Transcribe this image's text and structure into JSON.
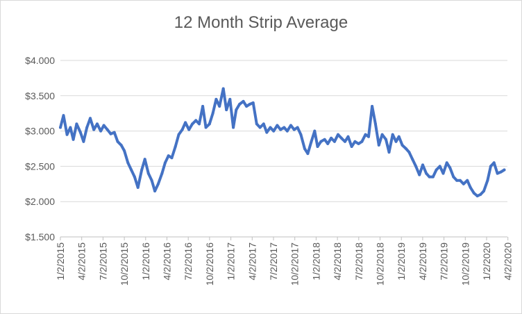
{
  "chart_data": {
    "type": "line",
    "title": "12 Month Strip Average",
    "xlabel": "",
    "ylabel": "",
    "ylim": [
      1.5,
      4.0
    ],
    "y_ticks": [
      "$1.500",
      "$2.000",
      "$2.500",
      "$3.000",
      "$3.500",
      "$4.000"
    ],
    "x_ticks": [
      "1/2/2015",
      "4/2/2015",
      "7/2/2015",
      "10/2/2015",
      "1/2/2016",
      "4/2/2016",
      "7/2/2016",
      "10/2/2016",
      "1/2/2017",
      "4/2/2017",
      "7/2/2017",
      "10/2/2017",
      "1/2/2018",
      "4/2/2018",
      "7/2/2018",
      "10/2/2018",
      "1/2/2019",
      "4/2/2019",
      "7/2/2019",
      "10/2/2019",
      "1/2/2020",
      "4/2/2020"
    ],
    "grid": true,
    "line_color": "#4472C4",
    "series": [
      {
        "x": [
          "2015-01-02",
          "2015-01-16",
          "2015-02-01",
          "2015-02-16",
          "2015-03-01",
          "2015-03-16",
          "2015-04-02",
          "2015-04-16",
          "2015-05-01",
          "2015-05-16",
          "2015-06-01",
          "2015-06-16",
          "2015-07-02",
          "2015-07-16",
          "2015-08-01",
          "2015-08-16",
          "2015-09-01",
          "2015-09-16",
          "2015-10-02",
          "2015-10-16",
          "2015-11-01",
          "2015-11-16",
          "2015-12-01",
          "2015-12-16",
          "2016-01-02",
          "2016-01-16",
          "2016-02-01",
          "2016-02-16",
          "2016-03-01",
          "2016-03-16",
          "2016-04-02",
          "2016-04-16",
          "2016-05-01",
          "2016-05-16",
          "2016-06-01",
          "2016-06-16",
          "2016-07-02",
          "2016-07-16",
          "2016-08-01",
          "2016-08-16",
          "2016-09-01",
          "2016-09-16",
          "2016-10-02",
          "2016-10-16",
          "2016-11-01",
          "2016-11-16",
          "2016-12-01",
          "2016-12-16",
          "2017-01-02",
          "2017-01-16",
          "2017-02-01",
          "2017-02-16",
          "2017-03-01",
          "2017-03-16",
          "2017-04-02",
          "2017-04-16",
          "2017-05-01",
          "2017-05-16",
          "2017-06-01",
          "2017-06-16",
          "2017-07-02",
          "2017-07-16",
          "2017-08-01",
          "2017-08-16",
          "2017-09-01",
          "2017-09-16",
          "2017-10-02",
          "2017-10-16",
          "2017-11-01",
          "2017-11-16",
          "2017-12-01",
          "2017-12-16",
          "2018-01-02",
          "2018-01-16",
          "2018-02-01",
          "2018-02-16",
          "2018-03-01",
          "2018-03-16",
          "2018-04-02",
          "2018-04-16",
          "2018-05-01",
          "2018-05-16",
          "2018-06-01",
          "2018-06-16",
          "2018-07-02",
          "2018-07-16",
          "2018-08-01",
          "2018-08-16",
          "2018-09-01",
          "2018-09-16",
          "2018-10-02",
          "2018-10-16",
          "2018-11-01",
          "2018-11-16",
          "2018-12-01",
          "2018-12-16",
          "2019-01-02",
          "2019-01-16",
          "2019-02-01",
          "2019-02-16",
          "2019-03-01",
          "2019-03-16",
          "2019-04-02",
          "2019-04-16",
          "2019-05-01",
          "2019-05-16",
          "2019-06-01",
          "2019-06-16",
          "2019-07-02",
          "2019-07-16",
          "2019-08-01",
          "2019-08-16",
          "2019-09-01",
          "2019-09-16",
          "2019-10-02",
          "2019-10-16",
          "2019-11-01",
          "2019-11-16",
          "2019-12-01",
          "2019-12-16",
          "2020-01-02",
          "2020-01-16",
          "2020-02-01",
          "2020-02-16",
          "2020-03-01",
          "2020-03-16",
          "2020-04-02",
          "2020-04-16",
          "2020-05-01",
          "2020-05-16",
          "2020-06-01",
          "2020-06-16"
        ],
        "values": [
          3.05,
          3.22,
          2.95,
          3.05,
          2.88,
          3.1,
          2.98,
          2.85,
          3.05,
          3.18,
          3.02,
          3.1,
          3.0,
          3.08,
          3.02,
          2.96,
          2.98,
          2.85,
          2.8,
          2.72,
          2.55,
          2.45,
          2.35,
          2.2,
          2.45,
          2.6,
          2.4,
          2.3,
          2.15,
          2.25,
          2.4,
          2.55,
          2.65,
          2.62,
          2.78,
          2.95,
          3.02,
          3.12,
          3.02,
          3.1,
          3.15,
          3.1,
          3.35,
          3.05,
          3.1,
          3.25,
          3.45,
          3.35,
          3.6,
          3.3,
          3.45,
          3.05,
          3.3,
          3.38,
          3.42,
          3.35,
          3.38,
          3.4,
          3.1,
          3.05,
          3.1,
          2.98,
          3.05,
          3.0,
          3.08,
          3.02,
          3.05,
          3.0,
          3.08,
          3.02,
          3.05,
          2.95,
          2.75,
          2.68,
          2.85,
          3.0,
          2.78,
          2.85,
          2.88,
          2.82,
          2.9,
          2.85,
          2.95,
          2.9,
          2.85,
          2.92,
          2.78,
          2.85,
          2.82,
          2.85,
          2.95,
          2.92,
          3.35,
          3.1,
          2.8,
          2.95,
          2.88,
          2.7,
          2.95,
          2.85,
          2.92,
          2.8,
          2.75,
          2.7,
          2.6,
          2.5,
          2.38,
          2.52,
          2.4,
          2.35,
          2.35,
          2.45,
          2.5,
          2.4,
          2.55,
          2.48,
          2.35,
          2.3,
          2.3,
          2.25,
          2.3,
          2.2,
          2.12,
          2.08,
          2.1,
          2.15,
          2.3,
          2.5,
          2.55,
          2.4,
          2.42,
          2.45
        ]
      }
    ]
  }
}
